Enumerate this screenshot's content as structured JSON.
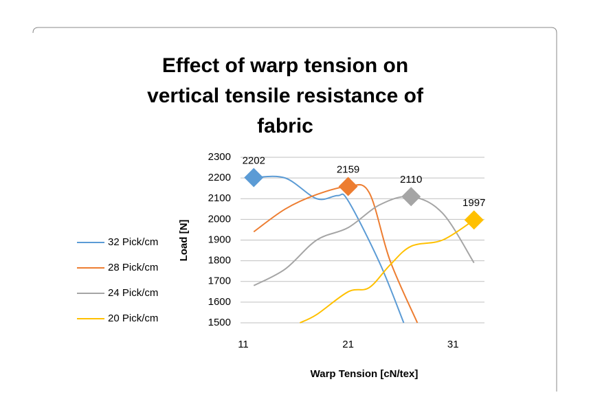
{
  "chart_data": {
    "type": "line",
    "title": "Effect of warp tension on vertical tensile resistance of fabric",
    "x_label": "Warp Tension [cN/tex]",
    "y_label": "Load [N]",
    "xlim": [
      11,
      34
    ],
    "xticks": [
      11,
      21,
      31
    ],
    "ylim": [
      1500,
      2300
    ],
    "yticks": [
      1500,
      1600,
      1700,
      1800,
      1900,
      2000,
      2100,
      2200,
      2300
    ],
    "grid": true,
    "legend": "left",
    "series": [
      {
        "name": "32 Pick/cm",
        "color": "#5b9bd5",
        "x": [
          12,
          15,
          18,
          20,
          21,
          24,
          26.3
        ],
        "values": [
          2202,
          2200,
          2100,
          2115,
          2090,
          1790,
          1500
        ]
      },
      {
        "name": "28 Pick/cm",
        "color": "#ed7d31",
        "x": [
          12,
          15,
          18,
          21,
          23,
          25,
          27.6
        ],
        "values": [
          1940,
          2050,
          2120,
          2159,
          2130,
          1800,
          1500
        ]
      },
      {
        "name": "24 Pick/cm",
        "color": "#a5a5a5",
        "x": [
          12,
          15,
          18,
          21,
          24,
          27,
          30,
          33
        ],
        "values": [
          1680,
          1760,
          1900,
          1960,
          2070,
          2110,
          2030,
          1790
        ]
      },
      {
        "name": "20 Pick/cm",
        "color": "#ffc000",
        "x": [
          16.4,
          18,
          21,
          23,
          25,
          27,
          30,
          33
        ],
        "values": [
          1500,
          1540,
          1650,
          1670,
          1780,
          1870,
          1900,
          1997
        ]
      }
    ]
  }
}
